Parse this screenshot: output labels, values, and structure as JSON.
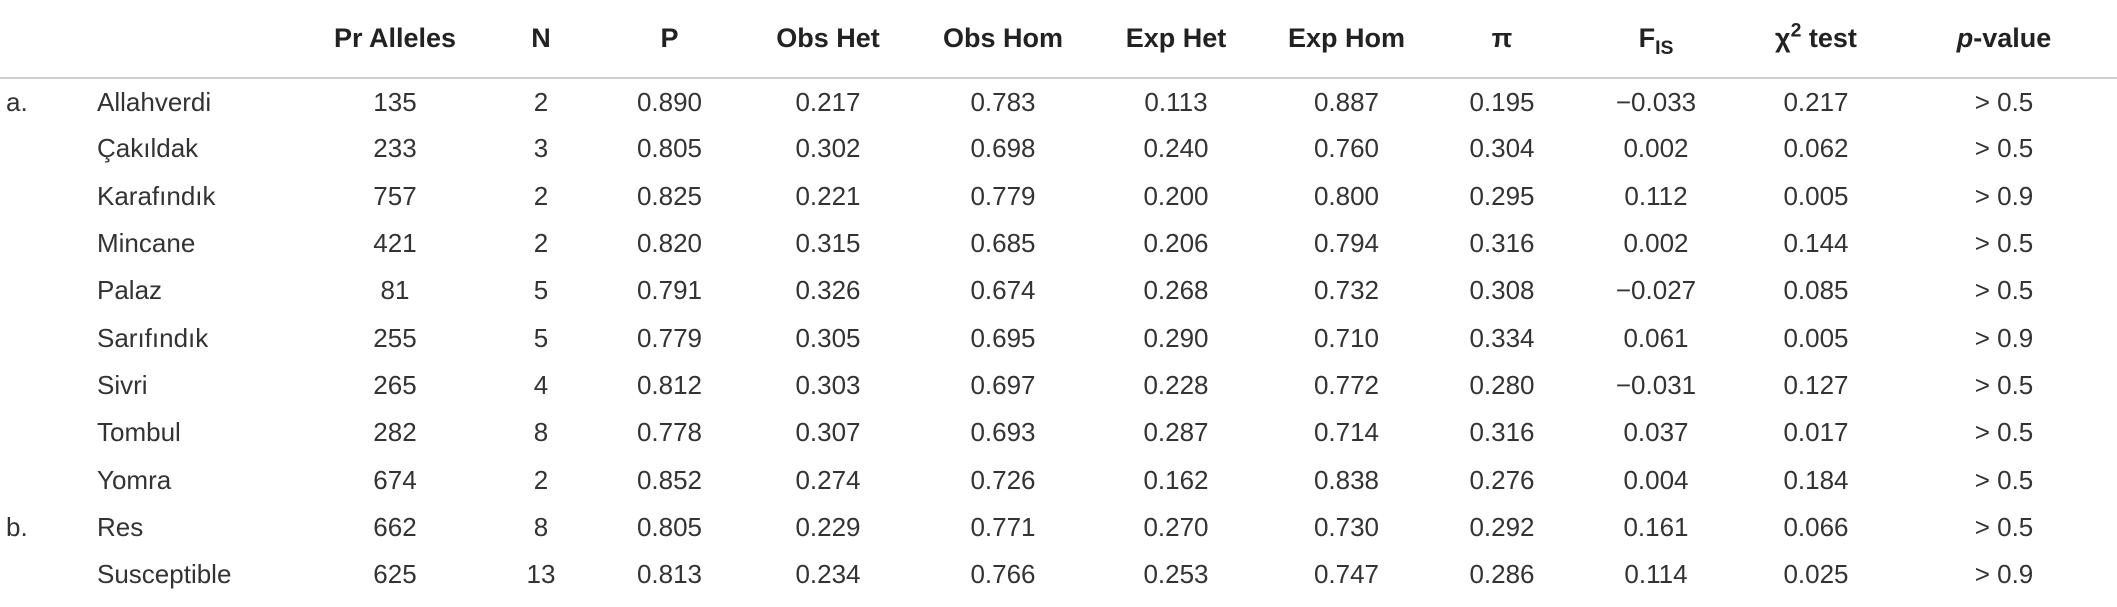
{
  "table": {
    "headers": {
      "pr_alleles": "Pr Alleles",
      "n": "N",
      "p": "P",
      "obs_het": "Obs Het",
      "obs_hom": "Obs Hom",
      "exp_het": "Exp Het",
      "exp_hom": "Exp Hom",
      "pi": "π",
      "fis_base": "F",
      "fis_sub": "IS",
      "chi_base": "χ",
      "chi_sup": "2",
      "chi_rest": " test",
      "pvalue_italic": "p",
      "pvalue_rest": "-value"
    },
    "rows": [
      {
        "group": "a.",
        "name": "Allahverdi",
        "pr_alleles": "135",
        "n": "2",
        "p": "0.890",
        "obs_het": "0.217",
        "obs_hom": "0.783",
        "exp_het": "0.113",
        "exp_hom": "0.887",
        "pi": "0.195",
        "fis": "−0.033",
        "chi2": "0.217",
        "pvalue": "> 0.5"
      },
      {
        "group": "",
        "name": "Çakıldak",
        "pr_alleles": "233",
        "n": "3",
        "p": "0.805",
        "obs_het": "0.302",
        "obs_hom": "0.698",
        "exp_het": "0.240",
        "exp_hom": "0.760",
        "pi": "0.304",
        "fis": "0.002",
        "chi2": "0.062",
        "pvalue": "> 0.5"
      },
      {
        "group": "",
        "name": "Karafındık",
        "pr_alleles": "757",
        "n": "2",
        "p": "0.825",
        "obs_het": "0.221",
        "obs_hom": "0.779",
        "exp_het": "0.200",
        "exp_hom": "0.800",
        "pi": "0.295",
        "fis": "0.112",
        "chi2": "0.005",
        "pvalue": "> 0.9"
      },
      {
        "group": "",
        "name": "Mincane",
        "pr_alleles": "421",
        "n": "2",
        "p": "0.820",
        "obs_het": "0.315",
        "obs_hom": "0.685",
        "exp_het": "0.206",
        "exp_hom": "0.794",
        "pi": "0.316",
        "fis": "0.002",
        "chi2": "0.144",
        "pvalue": "> 0.5"
      },
      {
        "group": "",
        "name": "Palaz",
        "pr_alleles": "81",
        "n": "5",
        "p": "0.791",
        "obs_het": "0.326",
        "obs_hom": "0.674",
        "exp_het": "0.268",
        "exp_hom": "0.732",
        "pi": "0.308",
        "fis": "−0.027",
        "chi2": "0.085",
        "pvalue": "> 0.5"
      },
      {
        "group": "",
        "name": "Sarıfındık",
        "pr_alleles": "255",
        "n": "5",
        "p": "0.779",
        "obs_het": "0.305",
        "obs_hom": "0.695",
        "exp_het": "0.290",
        "exp_hom": "0.710",
        "pi": "0.334",
        "fis": "0.061",
        "chi2": "0.005",
        "pvalue": "> 0.9"
      },
      {
        "group": "",
        "name": "Sivri",
        "pr_alleles": "265",
        "n": "4",
        "p": "0.812",
        "obs_het": "0.303",
        "obs_hom": "0.697",
        "exp_het": "0.228",
        "exp_hom": "0.772",
        "pi": "0.280",
        "fis": "−0.031",
        "chi2": "0.127",
        "pvalue": "> 0.5"
      },
      {
        "group": "",
        "name": "Tombul",
        "pr_alleles": "282",
        "n": "8",
        "p": "0.778",
        "obs_het": "0.307",
        "obs_hom": "0.693",
        "exp_het": "0.287",
        "exp_hom": "0.714",
        "pi": "0.316",
        "fis": "0.037",
        "chi2": "0.017",
        "pvalue": "> 0.5"
      },
      {
        "group": "",
        "name": "Yomra",
        "pr_alleles": "674",
        "n": "2",
        "p": "0.852",
        "obs_het": "0.274",
        "obs_hom": "0.726",
        "exp_het": "0.162",
        "exp_hom": "0.838",
        "pi": "0.276",
        "fis": "0.004",
        "chi2": "0.184",
        "pvalue": "> 0.5"
      },
      {
        "group": "b.",
        "name": "Res",
        "pr_alleles": "662",
        "n": "8",
        "p": "0.805",
        "obs_het": "0.229",
        "obs_hom": "0.771",
        "exp_het": "0.270",
        "exp_hom": "0.730",
        "pi": "0.292",
        "fis": "0.161",
        "chi2": "0.066",
        "pvalue": "> 0.5"
      },
      {
        "group": "",
        "name": "Susceptible",
        "pr_alleles": "625",
        "n": "13",
        "p": "0.813",
        "obs_het": "0.234",
        "obs_hom": "0.766",
        "exp_het": "0.253",
        "exp_hom": "0.747",
        "pi": "0.286",
        "fis": "0.114",
        "chi2": "0.025",
        "pvalue": "> 0.9"
      }
    ]
  }
}
